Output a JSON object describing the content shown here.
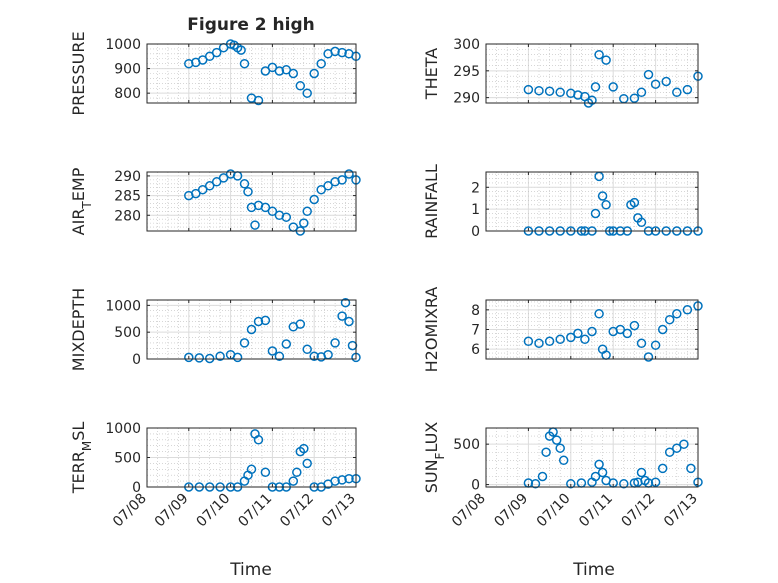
{
  "figure": {
    "title": "Figure 2 high",
    "xlabel": "Time",
    "marker_color": "#0072BD"
  },
  "chart_data": [
    {
      "type": "scatter",
      "ylabel": "PRESSURE",
      "ylim": [
        760,
        1000
      ],
      "yticks": [
        "800",
        "900",
        "1000"
      ],
      "xticks": [],
      "grid": "major+minor",
      "x": [
        "07/09 00:00",
        "07/09 04:00",
        "07/09 08:00",
        "07/09 12:00",
        "07/09 16:00",
        "07/09 20:00",
        "07/10 00:00",
        "07/10 02:00",
        "07/10 04:00",
        "07/10 06:00",
        "07/10 08:00",
        "07/10 12:00",
        "07/10 16:00",
        "07/10 20:00",
        "07/11 00:00",
        "07/11 04:00",
        "07/11 08:00",
        "07/11 12:00",
        "07/11 16:00",
        "07/11 20:00",
        "07/12 00:00",
        "07/12 04:00",
        "07/12 08:00",
        "07/12 12:00",
        "07/12 16:00",
        "07/12 20:00",
        "07/13 00:00"
      ],
      "series": [
        {
          "values": [
            920,
            925,
            935,
            950,
            965,
            985,
            1000,
            995,
            985,
            975,
            920,
            780,
            770,
            890,
            905,
            890,
            895,
            880,
            830,
            800,
            880,
            920,
            960,
            970,
            965,
            960,
            950
          ]
        }
      ]
    },
    {
      "type": "scatter",
      "ylabel": "THETA",
      "ylim": [
        289,
        300
      ],
      "yticks": [
        "290",
        "295",
        "300"
      ],
      "xticks": [],
      "grid": "major+minor",
      "x": [
        "07/09 00:00",
        "07/09 06:00",
        "07/09 12:00",
        "07/09 18:00",
        "07/10 00:00",
        "07/10 04:00",
        "07/10 08:00",
        "07/10 10:00",
        "07/10 12:00",
        "07/10 14:00",
        "07/10 16:00",
        "07/10 20:00",
        "07/11 00:00",
        "07/11 06:00",
        "07/11 12:00",
        "07/11 16:00",
        "07/11 20:00",
        "07/12 00:00",
        "07/12 06:00",
        "07/12 12:00",
        "07/12 18:00",
        "07/13 00:00"
      ],
      "series": [
        {
          "values": [
            291.5,
            291.3,
            291.2,
            291,
            290.8,
            290.5,
            290.2,
            289,
            289.5,
            292,
            298,
            297,
            292,
            289.8,
            289.9,
            291,
            294.3,
            292.5,
            293,
            291,
            291.5,
            294
          ]
        }
      ]
    },
    {
      "type": "scatter",
      "ylabel": "AIR_TEMP",
      "ylim": [
        276,
        291
      ],
      "yticks": [
        "280",
        "285",
        "290"
      ],
      "xticks": [],
      "grid": "major+minor",
      "x": [
        "07/09 00:00",
        "07/09 04:00",
        "07/09 08:00",
        "07/09 12:00",
        "07/09 16:00",
        "07/09 20:00",
        "07/10 00:00",
        "07/10 04:00",
        "07/10 08:00",
        "07/10 10:00",
        "07/10 12:00",
        "07/10 14:00",
        "07/10 16:00",
        "07/10 20:00",
        "07/11 00:00",
        "07/11 04:00",
        "07/11 08:00",
        "07/11 12:00",
        "07/11 16:00",
        "07/11 18:00",
        "07/11 20:00",
        "07/12 00:00",
        "07/12 04:00",
        "07/12 08:00",
        "07/12 12:00",
        "07/12 16:00",
        "07/12 20:00",
        "07/13 00:00"
      ],
      "series": [
        {
          "values": [
            285,
            285.5,
            286.5,
            287.5,
            288.5,
            289.5,
            290.5,
            290,
            288,
            286,
            282,
            277.5,
            282.5,
            282,
            281,
            280,
            279.5,
            277,
            276,
            278,
            281,
            284,
            286.5,
            287.5,
            288.5,
            289,
            290.5,
            289
          ]
        }
      ]
    },
    {
      "type": "scatter",
      "ylabel": "RAINFALL",
      "ylim": [
        0,
        2.7
      ],
      "yticks": [
        "0",
        "1",
        "2"
      ],
      "xticks": [],
      "grid": "major+minor",
      "x": [
        "07/09 00:00",
        "07/09 06:00",
        "07/09 12:00",
        "07/09 18:00",
        "07/10 00:00",
        "07/10 06:00",
        "07/10 08:00",
        "07/10 12:00",
        "07/10 14:00",
        "07/10 16:00",
        "07/10 18:00",
        "07/10 20:00",
        "07/10 22:00",
        "07/11 00:00",
        "07/11 04:00",
        "07/11 08:00",
        "07/11 10:00",
        "07/11 12:00",
        "07/11 14:00",
        "07/11 16:00",
        "07/11 20:00",
        "07/12 00:00",
        "07/12 06:00",
        "07/12 12:00",
        "07/12 18:00",
        "07/13 00:00"
      ],
      "series": [
        {
          "values": [
            0,
            0,
            0,
            0,
            0,
            0,
            0,
            0,
            0.8,
            2.5,
            1.6,
            1.2,
            0,
            0,
            0,
            0,
            1.2,
            1.3,
            0.6,
            0.4,
            0,
            0,
            0,
            0,
            0,
            0
          ]
        }
      ]
    },
    {
      "type": "scatter",
      "ylabel": "MIXDEPTH",
      "ylim": [
        0,
        1100
      ],
      "yticks": [
        "0",
        "500",
        "1000"
      ],
      "xticks": [],
      "grid": "major+minor",
      "x": [
        "07/09 00:00",
        "07/09 06:00",
        "07/09 12:00",
        "07/09 18:00",
        "07/10 00:00",
        "07/10 04:00",
        "07/10 08:00",
        "07/10 12:00",
        "07/10 16:00",
        "07/10 20:00",
        "07/11 00:00",
        "07/11 04:00",
        "07/11 08:00",
        "07/11 12:00",
        "07/11 16:00",
        "07/11 20:00",
        "07/12 00:00",
        "07/12 04:00",
        "07/12 08:00",
        "07/12 12:00",
        "07/12 16:00",
        "07/12 18:00",
        "07/12 20:00",
        "07/12 22:00",
        "07/13 00:00"
      ],
      "series": [
        {
          "values": [
            30,
            20,
            10,
            50,
            80,
            30,
            300,
            550,
            700,
            720,
            150,
            50,
            280,
            600,
            650,
            180,
            50,
            40,
            80,
            300,
            800,
            1050,
            700,
            250,
            30
          ]
        }
      ]
    },
    {
      "type": "scatter",
      "ylabel": "H2OMIXRA",
      "ylim": [
        5.5,
        8.5
      ],
      "yticks": [
        "6",
        "7",
        "8"
      ],
      "xticks": [],
      "grid": "major+minor",
      "x": [
        "07/09 00:00",
        "07/09 06:00",
        "07/09 12:00",
        "07/09 18:00",
        "07/10 00:00",
        "07/10 04:00",
        "07/10 08:00",
        "07/10 12:00",
        "07/10 16:00",
        "07/10 18:00",
        "07/10 20:00",
        "07/11 00:00",
        "07/11 04:00",
        "07/11 08:00",
        "07/11 12:00",
        "07/11 16:00",
        "07/11 20:00",
        "07/12 00:00",
        "07/12 04:00",
        "07/12 08:00",
        "07/12 12:00",
        "07/12 18:00",
        "07/13 00:00"
      ],
      "series": [
        {
          "values": [
            6.4,
            6.3,
            6.4,
            6.5,
            6.6,
            6.8,
            6.5,
            6.9,
            7.8,
            6,
            5.7,
            6.9,
            7,
            6.8,
            7.2,
            6.3,
            5.6,
            6.2,
            7,
            7.5,
            7.8,
            8,
            8.2
          ]
        }
      ]
    },
    {
      "type": "scatter",
      "ylabel": "TERR_MSL",
      "ylim": [
        0,
        1000
      ],
      "yticks": [
        "0",
        "500",
        "1000"
      ],
      "xticks": [
        "07/08",
        "07/09",
        "07/10",
        "07/11",
        "07/12",
        "07/13"
      ],
      "grid": "major+minor",
      "x": [
        "07/09 00:00",
        "07/09 06:00",
        "07/09 12:00",
        "07/09 18:00",
        "07/10 00:00",
        "07/10 04:00",
        "07/10 08:00",
        "07/10 10:00",
        "07/10 12:00",
        "07/10 14:00",
        "07/10 16:00",
        "07/10 20:00",
        "07/11 00:00",
        "07/11 04:00",
        "07/11 08:00",
        "07/11 12:00",
        "07/11 14:00",
        "07/11 16:00",
        "07/11 18:00",
        "07/11 20:00",
        "07/12 00:00",
        "07/12 04:00",
        "07/12 08:00",
        "07/12 12:00",
        "07/12 16:00",
        "07/12 20:00",
        "07/13 00:00"
      ],
      "series": [
        {
          "values": [
            0,
            0,
            0,
            0,
            0,
            0,
            100,
            200,
            300,
            900,
            800,
            250,
            0,
            0,
            0,
            100,
            250,
            600,
            650,
            400,
            0,
            0,
            50,
            100,
            120,
            140,
            140
          ]
        }
      ]
    },
    {
      "type": "scatter",
      "ylabel": "SUN_FLUX",
      "ylim": [
        -30,
        700
      ],
      "yticks": [
        "0",
        "500"
      ],
      "xticks": [
        "07/08",
        "07/09",
        "07/10",
        "07/11",
        "07/12",
        "07/13"
      ],
      "grid": "major+minor",
      "x": [
        "07/09 00:00",
        "07/09 04:00",
        "07/09 08:00",
        "07/09 10:00",
        "07/09 12:00",
        "07/09 14:00",
        "07/09 16:00",
        "07/09 18:00",
        "07/09 20:00",
        "07/10 00:00",
        "07/10 06:00",
        "07/10 12:00",
        "07/10 14:00",
        "07/10 16:00",
        "07/10 18:00",
        "07/10 20:00",
        "07/11 00:00",
        "07/11 06:00",
        "07/11 12:00",
        "07/11 14:00",
        "07/11 16:00",
        "07/11 18:00",
        "07/11 20:00",
        "07/12 00:00",
        "07/12 04:00",
        "07/12 08:00",
        "07/12 12:00",
        "07/12 16:00",
        "07/12 20:00",
        "07/13 00:00"
      ],
      "series": [
        {
          "values": [
            20,
            10,
            100,
            400,
            600,
            650,
            550,
            450,
            300,
            10,
            20,
            30,
            100,
            250,
            150,
            50,
            20,
            10,
            20,
            30,
            150,
            50,
            20,
            30,
            200,
            400,
            450,
            500,
            200,
            30
          ]
        }
      ]
    }
  ]
}
